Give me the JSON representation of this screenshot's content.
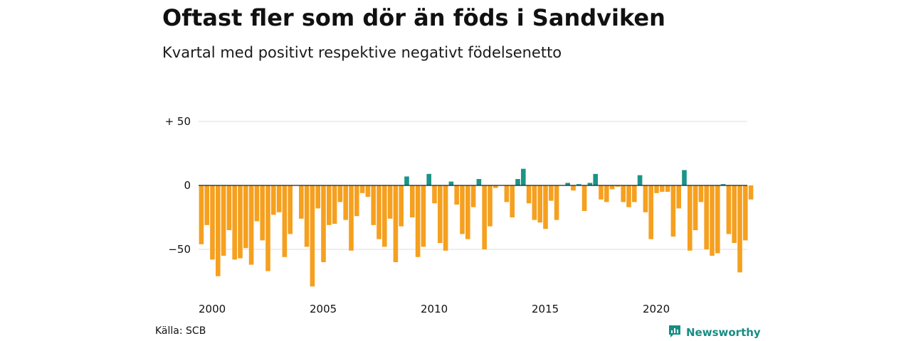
{
  "title": "Oftast fler som dör än föds i Sandviken",
  "subtitle": "Kvartal med positivt respektive negativt födelsenetto",
  "source": "Källa: SCB",
  "brand": {
    "name": "Newsworthy",
    "icon": "newsworthy-logo-icon"
  },
  "colors": {
    "positive": "#1a9487",
    "negative": "#f5a01f",
    "grid": "#dddddd",
    "zero_line": "#222222"
  },
  "chart_data": {
    "type": "bar",
    "title": "Oftast fler som dör än föds i Sandviken",
    "subtitle": "Kvartal med positivt respektive negativt födelsenetto",
    "xlabel": "",
    "ylabel": "",
    "ylim": [
      -82,
      58
    ],
    "grid": true,
    "y_ticks": [
      {
        "value": 50,
        "label": "+ 50"
      },
      {
        "value": 0,
        "label": "0"
      },
      {
        "value": -50,
        "label": "−50"
      }
    ],
    "x_ticks": [
      {
        "value": 2000,
        "label": "2000"
      },
      {
        "value": 2005,
        "label": "2005"
      },
      {
        "value": 2010,
        "label": "2010"
      },
      {
        "value": 2015,
        "label": "2015"
      },
      {
        "value": 2020,
        "label": "2020"
      }
    ],
    "x_start": 2000,
    "periods_per_year": 4,
    "values": [
      -46,
      -31,
      -58,
      -71,
      -55,
      -35,
      -58,
      -57,
      -49,
      -62,
      -28,
      -43,
      -67,
      -23,
      -21,
      -56,
      -38,
      0,
      -26,
      -48,
      -79,
      -18,
      -60,
      -31,
      -30,
      -13,
      -27,
      -51,
      -24,
      -6,
      -9,
      -31,
      -42,
      -48,
      -26,
      -60,
      -32,
      7,
      -25,
      -56,
      -48,
      9,
      -14,
      -45,
      -51,
      3,
      -15,
      -38,
      -42,
      -17,
      5,
      -50,
      -32,
      -2,
      0,
      -13,
      -25,
      5,
      13,
      -14,
      -27,
      -29,
      -34,
      -12,
      -27,
      0,
      2,
      -4,
      1,
      -20,
      2,
      9,
      -11,
      -13,
      -3,
      -1,
      -13,
      -17,
      -13,
      8,
      -21,
      -42,
      -6,
      -5,
      -5,
      -40,
      -18,
      12,
      -51,
      -35,
      -13,
      -50,
      -55,
      -53,
      1,
      -38,
      -45,
      -68,
      -43,
      -11
    ]
  }
}
